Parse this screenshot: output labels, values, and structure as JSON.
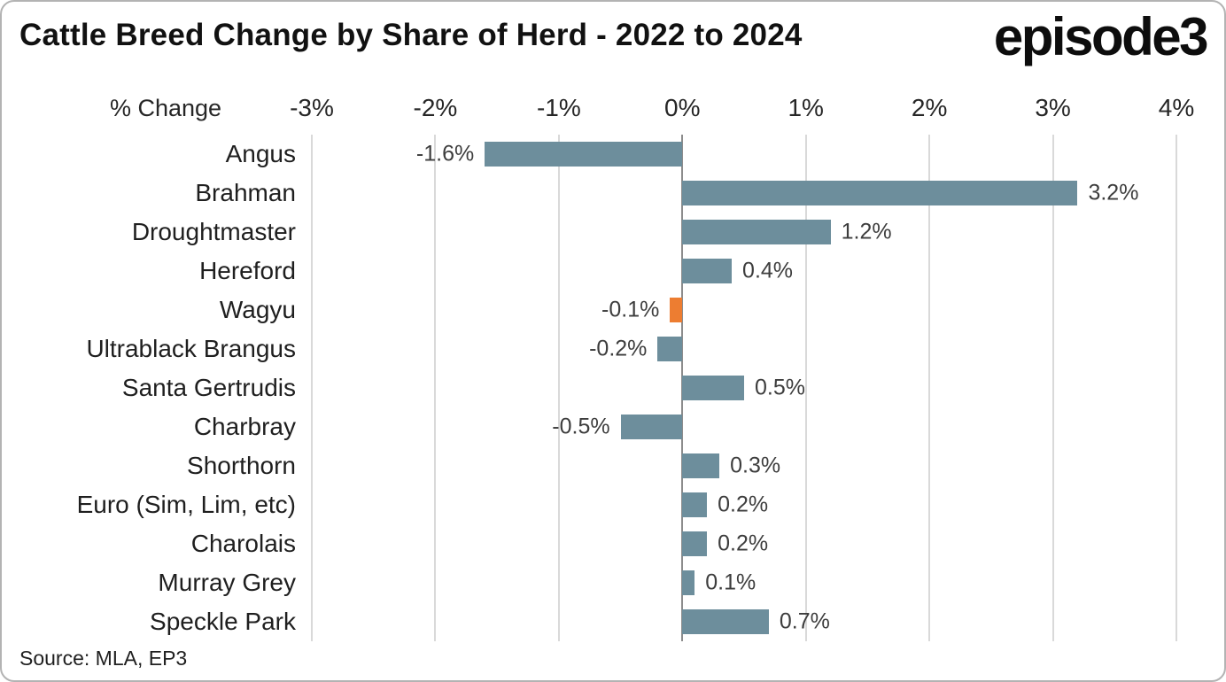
{
  "header": {
    "title": "Cattle Breed Change by Share of Herd - 2022 to 2024",
    "logo_text": "episode3"
  },
  "footer": {
    "source": "Source: MLA, EP3"
  },
  "chart_data": {
    "type": "bar",
    "orientation": "horizontal",
    "title": "Cattle Breed Change by Share of Herd - 2022 to 2024",
    "xlabel": "% Change",
    "ylabel": "",
    "xlim": [
      -3,
      4
    ],
    "grid": true,
    "categories": [
      "Angus",
      "Brahman",
      "Droughtmaster",
      "Hereford",
      "Wagyu",
      "Ultrablack Brangus",
      "Santa Gertrudis",
      "Charbray",
      "Shorthorn",
      "Euro (Sim, Lim, etc)",
      "Charolais",
      "Murray Grey",
      "Speckle Park"
    ],
    "values": [
      -1.6,
      3.2,
      1.2,
      0.4,
      -0.1,
      -0.2,
      0.5,
      -0.5,
      0.3,
      0.2,
      0.2,
      0.1,
      0.7
    ],
    "labels": [
      "-1.6%",
      "3.2%",
      "1.2%",
      "0.4%",
      "-0.1%",
      "-0.2%",
      "0.5%",
      "-0.5%",
      "0.3%",
      "0.2%",
      "0.2%",
      "0.1%",
      "0.7%"
    ],
    "x_ticks": [
      {
        "label": "-3%",
        "value": -3
      },
      {
        "label": "-2%",
        "value": -2
      },
      {
        "label": "-1%",
        "value": -1
      },
      {
        "label": "0%",
        "value": 0
      },
      {
        "label": "1%",
        "value": 1
      },
      {
        "label": "2%",
        "value": 2
      },
      {
        "label": "3%",
        "value": 3
      },
      {
        "label": "4%",
        "value": 4
      }
    ],
    "bar_color": "#6D8E9C",
    "highlight_color": "#ED7D31",
    "highlight_index": 4,
    "highlight_category": "Wagyu"
  }
}
